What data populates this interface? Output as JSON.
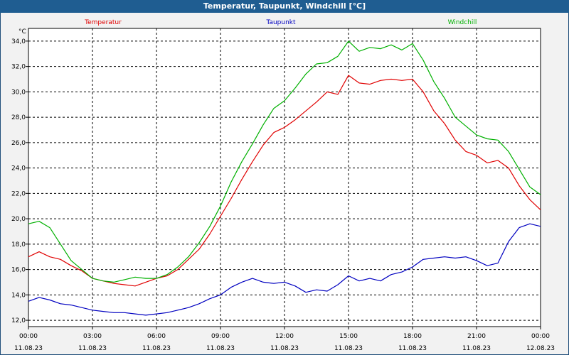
{
  "chart_data": {
    "type": "line",
    "title": "Temperatur, Taupunkt, Windchill [°C]",
    "ylabel": "°C",
    "xlabel": "",
    "ylim": [
      11.5,
      35.0
    ],
    "xlim": [
      0,
      24
    ],
    "grid": true,
    "yticks": [
      "34,0",
      "32,0",
      "30,0",
      "28,0",
      "26,0",
      "24,0",
      "22,0",
      "20,0",
      "18,0",
      "16,0",
      "14,0",
      "12,0"
    ],
    "ytick_values": [
      34,
      32,
      30,
      28,
      26,
      24,
      22,
      20,
      18,
      16,
      14,
      12
    ],
    "xticks": [
      {
        "time": "00:00",
        "date": "11.08.23",
        "h": 0
      },
      {
        "time": "03:00",
        "date": "11.08.23",
        "h": 3
      },
      {
        "time": "06:00",
        "date": "11.08.23",
        "h": 6
      },
      {
        "time": "09:00",
        "date": "11.08.23",
        "h": 9
      },
      {
        "time": "12:00",
        "date": "11.08.23",
        "h": 12
      },
      {
        "time": "15:00",
        "date": "11.08.23",
        "h": 15
      },
      {
        "time": "18:00",
        "date": "11.08.23",
        "h": 18
      },
      {
        "time": "21:00",
        "date": "11.08.23",
        "h": 21
      },
      {
        "time": "00:00",
        "date": "12.08.23",
        "h": 24
      }
    ],
    "series": [
      {
        "name": "Temperatur",
        "color": "#e00000",
        "x": [
          0,
          0.5,
          1,
          1.5,
          2,
          2.5,
          3,
          3.5,
          4,
          4.5,
          5,
          5.5,
          6,
          6.5,
          7,
          7.5,
          8,
          8.5,
          9,
          9.5,
          10,
          10.5,
          11,
          11.5,
          12,
          12.5,
          13,
          13.5,
          14,
          14.5,
          15,
          15.5,
          16,
          16.5,
          17,
          17.5,
          18,
          18.5,
          19,
          19.5,
          20,
          20.5,
          21,
          21.5,
          22,
          22.5,
          23,
          23.5,
          24
        ],
        "values": [
          17.0,
          17.4,
          17.0,
          16.8,
          16.3,
          15.9,
          15.3,
          15.1,
          14.9,
          14.8,
          14.7,
          15.0,
          15.3,
          15.5,
          16.0,
          16.8,
          17.6,
          18.8,
          20.2,
          21.6,
          23.1,
          24.5,
          25.8,
          26.8,
          27.2,
          27.8,
          28.5,
          29.2,
          30.0,
          29.8,
          31.3,
          30.7,
          30.6,
          30.9,
          31.0,
          30.9,
          31.0,
          30.0,
          28.5,
          27.5,
          26.2,
          25.3,
          25.0,
          24.4,
          24.6,
          24.0,
          22.6,
          21.5,
          20.7
        ]
      },
      {
        "name": "Taupunkt",
        "color": "#0000c0",
        "x": [
          0,
          0.5,
          1,
          1.5,
          2,
          2.5,
          3,
          3.5,
          4,
          4.5,
          5,
          5.5,
          6,
          6.5,
          7,
          7.5,
          8,
          8.5,
          9,
          9.5,
          10,
          10.5,
          11,
          11.5,
          12,
          12.5,
          13,
          13.5,
          14,
          14.5,
          15,
          15.5,
          16,
          16.5,
          17,
          17.5,
          18,
          18.5,
          19,
          19.5,
          20,
          20.5,
          21,
          21.5,
          22,
          22.5,
          23,
          23.5,
          24
        ],
        "values": [
          13.5,
          13.8,
          13.6,
          13.3,
          13.2,
          13.0,
          12.8,
          12.7,
          12.6,
          12.6,
          12.5,
          12.4,
          12.5,
          12.6,
          12.8,
          13.0,
          13.3,
          13.7,
          14.0,
          14.6,
          15.0,
          15.3,
          15.0,
          14.9,
          15.0,
          14.7,
          14.2,
          14.4,
          14.3,
          14.8,
          15.5,
          15.1,
          15.3,
          15.1,
          15.6,
          15.8,
          16.2,
          16.8,
          16.9,
          17.0,
          16.9,
          17.0,
          16.7,
          16.3,
          16.5,
          18.2,
          19.3,
          19.6,
          19.4
        ]
      },
      {
        "name": "Windchill",
        "color": "#00b000",
        "x": [
          0,
          0.5,
          1,
          1.5,
          2,
          2.5,
          3,
          3.5,
          4,
          4.5,
          5,
          5.5,
          6,
          6.5,
          7,
          7.5,
          8,
          8.5,
          9,
          9.5,
          10,
          10.5,
          11,
          11.5,
          12,
          12.5,
          13,
          13.5,
          14,
          14.5,
          15,
          15.5,
          16,
          16.5,
          17,
          17.5,
          18,
          18.5,
          19,
          19.5,
          20,
          20.5,
          21,
          21.5,
          22,
          22.5,
          23,
          23.5,
          24
        ],
        "values": [
          19.6,
          19.8,
          19.3,
          18.0,
          16.7,
          16.0,
          15.3,
          15.1,
          15.0,
          15.2,
          15.4,
          15.3,
          15.3,
          15.6,
          16.2,
          17.0,
          18.1,
          19.4,
          21.0,
          22.9,
          24.5,
          25.9,
          27.4,
          28.7,
          29.3,
          30.3,
          31.4,
          32.2,
          32.3,
          32.8,
          34.0,
          33.2,
          33.5,
          33.4,
          33.7,
          33.3,
          33.8,
          32.5,
          30.8,
          29.5,
          28.0,
          27.3,
          26.6,
          26.3,
          26.2,
          25.3,
          23.9,
          22.5,
          21.9
        ]
      }
    ]
  }
}
